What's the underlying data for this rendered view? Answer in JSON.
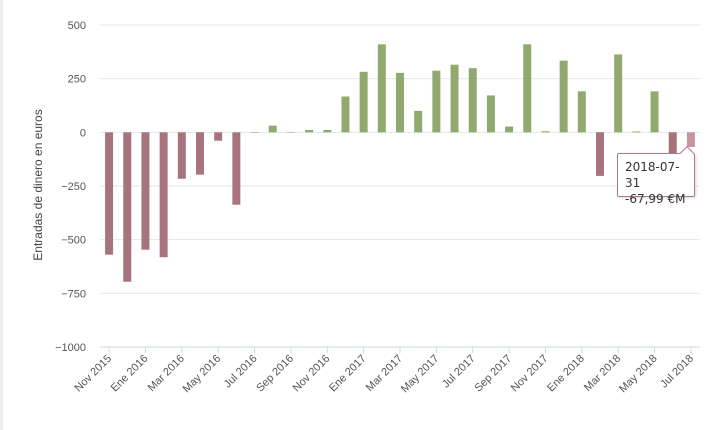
{
  "chart_data": {
    "type": "bar",
    "title": "",
    "xlabel": "",
    "ylabel": "Entradas de dinero en euros",
    "ylim": [
      -1000,
      500
    ],
    "yticks": [
      500,
      250,
      0,
      -250,
      -500,
      -750,
      -1000
    ],
    "ytick_labels": [
      "500",
      "250",
      "0",
      "−250",
      "−500",
      "−750",
      "−1000"
    ],
    "grid": true,
    "categories": [
      "Nov 2015",
      "Dic 2015",
      "Ene 2016",
      "Feb 2016",
      "Mar 2016",
      "Abr 2016",
      "May 2016",
      "Jun 2016",
      "Jul 2016",
      "Ago 2016",
      "Sep 2016",
      "Oct 2016",
      "Nov 2016",
      "Dic 2016",
      "Ene 2017",
      "Feb 2017",
      "Mar 2017",
      "Abr 2017",
      "May 2017",
      "Jun 2017",
      "Jul 2017",
      "Ago 2017",
      "Sep 2017",
      "Oct 2017",
      "Nov 2017",
      "Dic 2017",
      "Ene 2018",
      "Feb 2018",
      "Mar 2018",
      "Abr 2018",
      "May 2018",
      "Jun 2018",
      "Jul 2018"
    ],
    "xtick_labels": [
      "Nov 2015",
      "Ene 2016",
      "Mar 2016",
      "May 2016",
      "Jul 2016",
      "Sep 2016",
      "Nov 2016",
      "Ene 2017",
      "Mar 2017",
      "May 2017",
      "Jul 2017",
      "Sep 2017",
      "Nov 2017",
      "Ene 2018",
      "Mar 2018",
      "May 2018",
      "Jul 2018"
    ],
    "values": [
      -570,
      -696,
      -547,
      -582,
      -216,
      -197,
      -39,
      -337,
      0,
      31,
      0,
      11,
      11,
      167,
      282,
      410,
      277,
      100,
      287,
      315,
      299,
      172,
      27,
      410,
      5,
      334,
      191,
      -203,
      363,
      4,
      191,
      -110,
      -67.99
    ],
    "positive_color": "#8fa96f",
    "negative_color": "#a8737c",
    "highlight_color": "#c9939d",
    "highlighted_index": 32
  },
  "tooltip": {
    "date": "2018-07-31",
    "value": "-67,99 €M"
  }
}
